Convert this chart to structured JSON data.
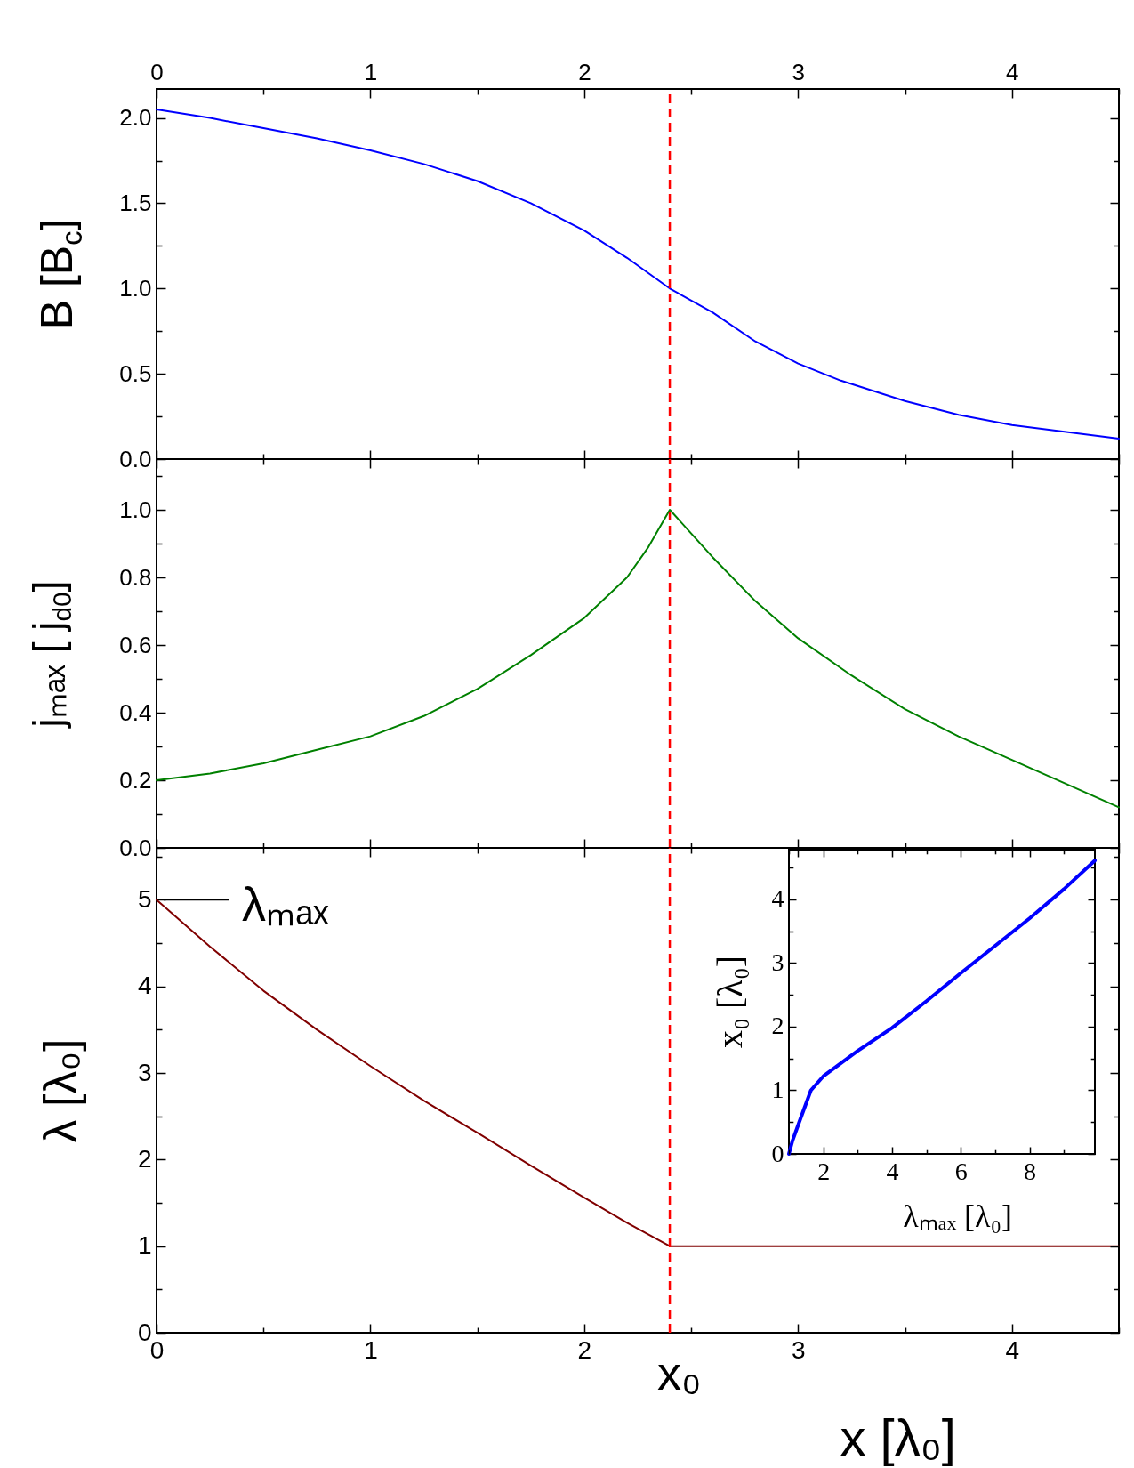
{
  "chart_data": [
    {
      "type": "line",
      "ylabel": "B [B$_{c}$]",
      "xlim": [
        0,
        4.5
      ],
      "xticks": [
        0,
        1,
        2,
        3,
        4
      ],
      "tick_labels": "y",
      "x2lim": [
        0,
        4.5
      ],
      "x2ticks": [
        0,
        1,
        2,
        3,
        4
      ],
      "ylim": [
        0,
        2.17
      ],
      "yticks": [
        {
          "value": 0,
          "label": "0.0"
        },
        {
          "value": 0.5,
          "label": "0.5"
        },
        {
          "value": 1,
          "label": "1.0"
        },
        {
          "value": 1.5,
          "label": "1.5"
        },
        {
          "value": 2,
          "label": "2.0"
        }
      ],
      "series": [
        {
          "color": "#0000ff",
          "x": [
            0,
            0.25,
            0.5,
            0.75,
            1,
            1.25,
            1.5,
            1.75,
            2,
            2.2,
            2.4,
            2.6,
            2.8,
            3,
            3.2,
            3.5,
            3.75,
            4,
            4.5
          ],
          "values": [
            2.05,
            2.0,
            1.94,
            1.88,
            1.81,
            1.73,
            1.63,
            1.5,
            1.34,
            1.18,
            1.0,
            0.86,
            0.69,
            0.56,
            0.46,
            0.34,
            0.26,
            0.2,
            0.12
          ]
        }
      ],
      "ref_lines": [
        {
          "axis": "x",
          "value": 2.4,
          "color": "#ff0000",
          "line_style": "dashed"
        }
      ]
    },
    {
      "type": "line",
      "ylabel": "jₘₐₓ [ j$_{d0}$]",
      "xlim": [
        0,
        4.5
      ],
      "xticks": [
        0,
        1,
        2,
        3,
        4
      ],
      "tick_labels": "y",
      "ylim": [
        0,
        1.15
      ],
      "yticks": [
        {
          "value": 0,
          "label": "0.0"
        },
        {
          "value": 0.2,
          "label": "0.2"
        },
        {
          "value": 0.4,
          "label": "0.4"
        },
        {
          "value": 0.6,
          "label": "0.6"
        },
        {
          "value": 0.8,
          "label": "0.8"
        },
        {
          "value": 1,
          "label": "1.0"
        }
      ],
      "series": [
        {
          "color": "#008000",
          "x": [
            0,
            0.25,
            0.5,
            0.75,
            1,
            1.25,
            1.5,
            1.75,
            2,
            2.1,
            2.2,
            2.3,
            2.4,
            2.5,
            2.6,
            2.8,
            3,
            3.25,
            3.5,
            3.75,
            4,
            4.5
          ],
          "values": [
            0.2,
            0.22,
            0.25,
            0.29,
            0.33,
            0.39,
            0.47,
            0.57,
            0.68,
            0.74,
            0.8,
            0.89,
            1.0,
            0.93,
            0.86,
            0.73,
            0.62,
            0.51,
            0.41,
            0.33,
            0.26,
            0.12
          ]
        }
      ],
      "ref_lines": [
        {
          "axis": "x",
          "value": 2.4,
          "color": "#ff0000",
          "line_style": "dashed"
        }
      ]
    },
    {
      "type": "line",
      "xlabel": "x [λ₀]",
      "ylabel": "λ [λ₀]",
      "xlim": [
        0,
        4.5
      ],
      "xticks": [
        0,
        1,
        2,
        3,
        4
      ],
      "ylim": [
        0,
        5.6
      ],
      "yticks": [
        0,
        1,
        2,
        3,
        4,
        5
      ],
      "series": [
        {
          "color": "#800000",
          "x": [
            0,
            0.25,
            0.5,
            0.75,
            1,
            1.25,
            1.5,
            1.75,
            2,
            2.2,
            2.4,
            3,
            3.5,
            4,
            4.5
          ],
          "values": [
            5,
            4.46,
            3.95,
            3.5,
            3.08,
            2.68,
            2.31,
            1.93,
            1.56,
            1.27,
            1.0,
            1.0,
            1.0,
            1.0,
            1.0
          ]
        }
      ],
      "ref_lines": [
        {
          "axis": "x",
          "value": 2.4,
          "color": "#ff0000",
          "line_style": "dashed",
          "label": "x₀"
        }
      ],
      "annotations": [
        {
          "text": "λₘₐₓ",
          "x": 0,
          "y": 5
        }
      ]
    },
    {
      "type": "line",
      "xlabel": "λₘₐₓ [λ₀]",
      "ylabel": "x₀ [λ₀]",
      "xlim": [
        1,
        9.9
      ],
      "xticks": [
        2,
        4,
        6,
        8
      ],
      "ylim": [
        0,
        4.78
      ],
      "yticks": [
        0,
        1,
        2,
        3,
        4
      ],
      "series": [
        {
          "color": "#0000ff",
          "x": [
            1,
            1.1,
            1.3,
            1.64,
            2,
            3,
            4,
            5,
            6,
            7,
            8,
            9,
            9.9
          ],
          "values": [
            0,
            0.2,
            0.5,
            1.0,
            1.22,
            1.62,
            1.98,
            2.4,
            2.84,
            3.27,
            3.7,
            4.16,
            4.61
          ]
        }
      ]
    }
  ]
}
